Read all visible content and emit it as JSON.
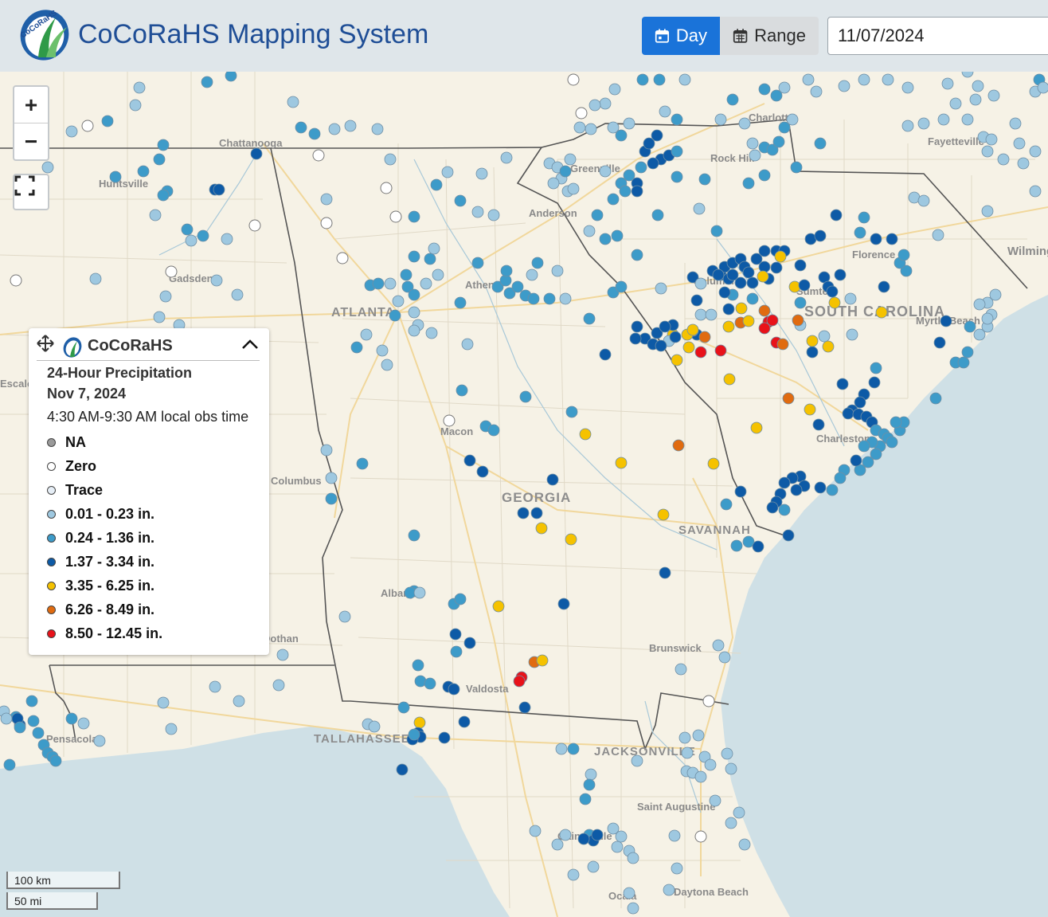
{
  "header": {
    "title": "CoCoRaHS Mapping System",
    "logo_text": "CoCoRaHS",
    "day_label": "Day",
    "range_label": "Range",
    "date_value": "11/07/2024"
  },
  "map_controls": {
    "zoom_in": "+",
    "zoom_out": "−"
  },
  "map_labels": {
    "cities": [
      "Chattanooga",
      "Huntsville",
      "Gadsden",
      "Atlanta",
      "Athens",
      "Anderson",
      "Greenville",
      "Charlotte",
      "Rock Hill",
      "Fayetteville",
      "Columbia",
      "Sumter",
      "Florence",
      "Myrtle Beach",
      "Wilmington",
      "Charleston",
      "Macon",
      "Columbus",
      "Albany",
      "Savannah",
      "Brunswick",
      "Valdosta",
      "Tallahassee",
      "Jacksonville",
      "Saint Augustine",
      "Daytona Beach",
      "Pensacola",
      "Dothan",
      "Ocala",
      "Gainesville",
      "Escalona"
    ],
    "states": [
      "ATLANTA",
      "GEORGIA",
      "SOUTH CAROLINA",
      "SAVANNAH",
      "TALLAHASSEE",
      "JACKSONVILLE"
    ]
  },
  "legend": {
    "brand": "CoCoRaHS",
    "title": "24-Hour Precipitation",
    "date": "Nov 7, 2024",
    "obs_time": "4:30 AM-9:30 AM local obs time",
    "items": [
      {
        "label": "NA",
        "color": "#9a9a9a"
      },
      {
        "label": "Zero",
        "color": "#ffffff"
      },
      {
        "label": "Trace",
        "color": "#e6eef6"
      },
      {
        "label": "0.01 - 0.23 in.",
        "color": "#9ec8e0"
      },
      {
        "label": "0.24 - 1.36 in.",
        "color": "#3d9bc9"
      },
      {
        "label": "1.37 - 3.34 in.",
        "color": "#0d5aa6"
      },
      {
        "label": "3.35 - 6.25 in.",
        "color": "#f5c200"
      },
      {
        "label": "6.26 - 8.49 in.",
        "color": "#e06b10"
      },
      {
        "label": "8.50 - 12.45 in.",
        "color": "#e8121a"
      }
    ]
  },
  "scale": {
    "km": "100 km",
    "mi": "50 mi"
  },
  "colors": {
    "light": "#9ec8e0",
    "mid": "#3d9bc9",
    "dark": "#0d5aa6",
    "yellow": "#f5c200",
    "orange": "#e06b10",
    "red": "#e8121a",
    "zero": "#ffffff",
    "land": "#f6f2e6",
    "water": "#cfe0e6"
  }
}
